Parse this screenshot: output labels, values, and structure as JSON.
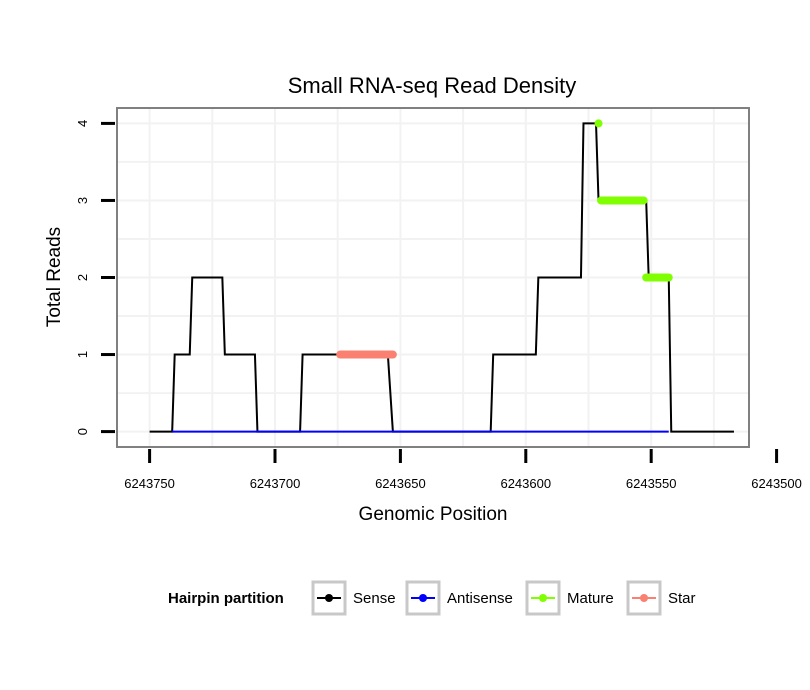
{
  "chart_data": {
    "type": "line",
    "title": "Small RNA-seq Read Density",
    "xlabel": "Genomic Position",
    "ylabel": "Total Reads",
    "xlim": [
      6243763,
      6243511
    ],
    "ylim": [
      -0.2,
      4.2
    ],
    "x_reversed": true,
    "x_ticks": [
      6243750,
      6243700,
      6243650,
      6243600,
      6243550,
      6243500
    ],
    "y_ticks": [
      0,
      1,
      2,
      3,
      4
    ],
    "grid": true,
    "legend": {
      "title": "Hairpin partition",
      "position": "bottom",
      "entries": [
        {
          "name": "Sense",
          "color": "#000000"
        },
        {
          "name": "Antisense",
          "color": "#0000ff"
        },
        {
          "name": "Mature",
          "color": "#7fff00"
        },
        {
          "name": "Star",
          "color": "#fa8072"
        }
      ]
    },
    "series": [
      {
        "name": "Sense",
        "color": "#000000",
        "style": "line",
        "x": [
          6243750,
          6243741,
          6243740,
          6243734,
          6243733,
          6243721,
          6243720,
          6243708,
          6243707,
          6243704,
          6243702,
          6243700,
          6243699,
          6243697,
          6243696,
          6243694,
          6243693,
          6243690,
          6243689,
          6243677,
          6243676,
          6243674,
          6243673,
          6243666,
          6243665,
          6243658,
          6243657,
          6243655,
          6243653,
          6243647,
          6243646,
          6243614,
          6243613,
          6243596,
          6243595,
          6243578,
          6243577,
          6243572,
          6243571,
          6243570,
          6243569,
          6243552,
          6243551,
          6243543,
          6243542,
          6243517
        ],
        "y": [
          0,
          0,
          1,
          1,
          2,
          2,
          1,
          1,
          0,
          0,
          0,
          0,
          0,
          0,
          0,
          0,
          0,
          0,
          1,
          1,
          1,
          1,
          1,
          1,
          1,
          1,
          1,
          1,
          0,
          0,
          0,
          0,
          1,
          1,
          2,
          2,
          4,
          4,
          3,
          3,
          3,
          3,
          2,
          2,
          0,
          0
        ]
      },
      {
        "name": "Antisense",
        "color": "#0000ff",
        "style": "line",
        "x": [
          6243741,
          6243543
        ],
        "y": [
          0,
          0
        ]
      },
      {
        "name": "Mature",
        "color": "#7fff00",
        "style": "points",
        "segments": [
          {
            "x": [
              6243571,
              6243571
            ],
            "y": [
              4,
              4
            ]
          },
          {
            "x": [
              6243570,
              6243553
            ],
            "y": [
              3,
              3
            ]
          },
          {
            "x": [
              6243552,
              6243543
            ],
            "y": [
              2,
              2
            ]
          }
        ]
      },
      {
        "name": "Star",
        "color": "#fa8072",
        "style": "points",
        "segments": [
          {
            "x": [
              6243674,
              6243653
            ],
            "y": [
              1,
              1
            ]
          }
        ]
      }
    ]
  }
}
